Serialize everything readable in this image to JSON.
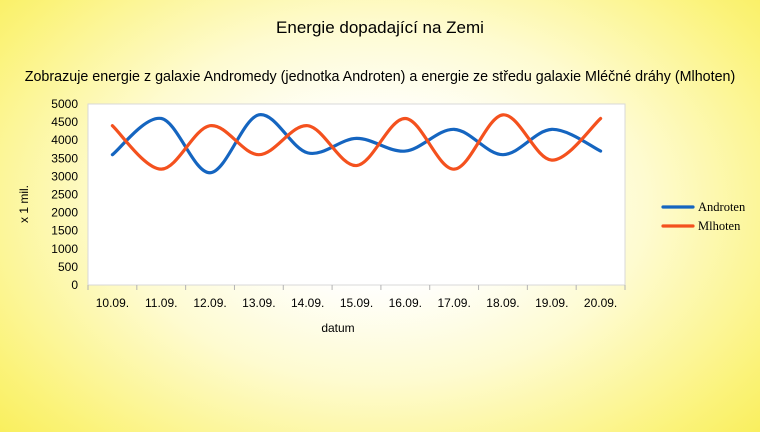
{
  "chart_data": {
    "type": "line",
    "title": "Energie dopadající na Zemi",
    "subtitle": "Zobrazuje energie z galaxie Andromedy (jednotka Androten) a energie ze středu galaxie Mléčné dráhy (Mlhoten)",
    "xlabel": "datum",
    "ylabel": "x 1 mil.",
    "categories": [
      "10.09.",
      "11.09.",
      "12.09.",
      "13.09.",
      "14.09.",
      "15.09.",
      "16.09.",
      "17.09.",
      "18.09.",
      "19.09.",
      "20.09."
    ],
    "ylim": [
      0,
      5000
    ],
    "yticks": [
      0,
      500,
      1000,
      1500,
      2000,
      2500,
      3000,
      3500,
      4000,
      4500,
      5000
    ],
    "smooth": true,
    "grid": false,
    "legend_position": "right",
    "series": [
      {
        "name": "Androten",
        "color": "#1565c0",
        "values": [
          3600,
          4600,
          3100,
          4700,
          3650,
          4050,
          3700,
          4300,
          3600,
          4300,
          3700
        ]
      },
      {
        "name": "Mlhoten",
        "color": "#f4511e",
        "values": [
          4400,
          3200,
          4400,
          3600,
          4400,
          3300,
          4600,
          3200,
          4700,
          3450,
          4600
        ]
      }
    ]
  }
}
